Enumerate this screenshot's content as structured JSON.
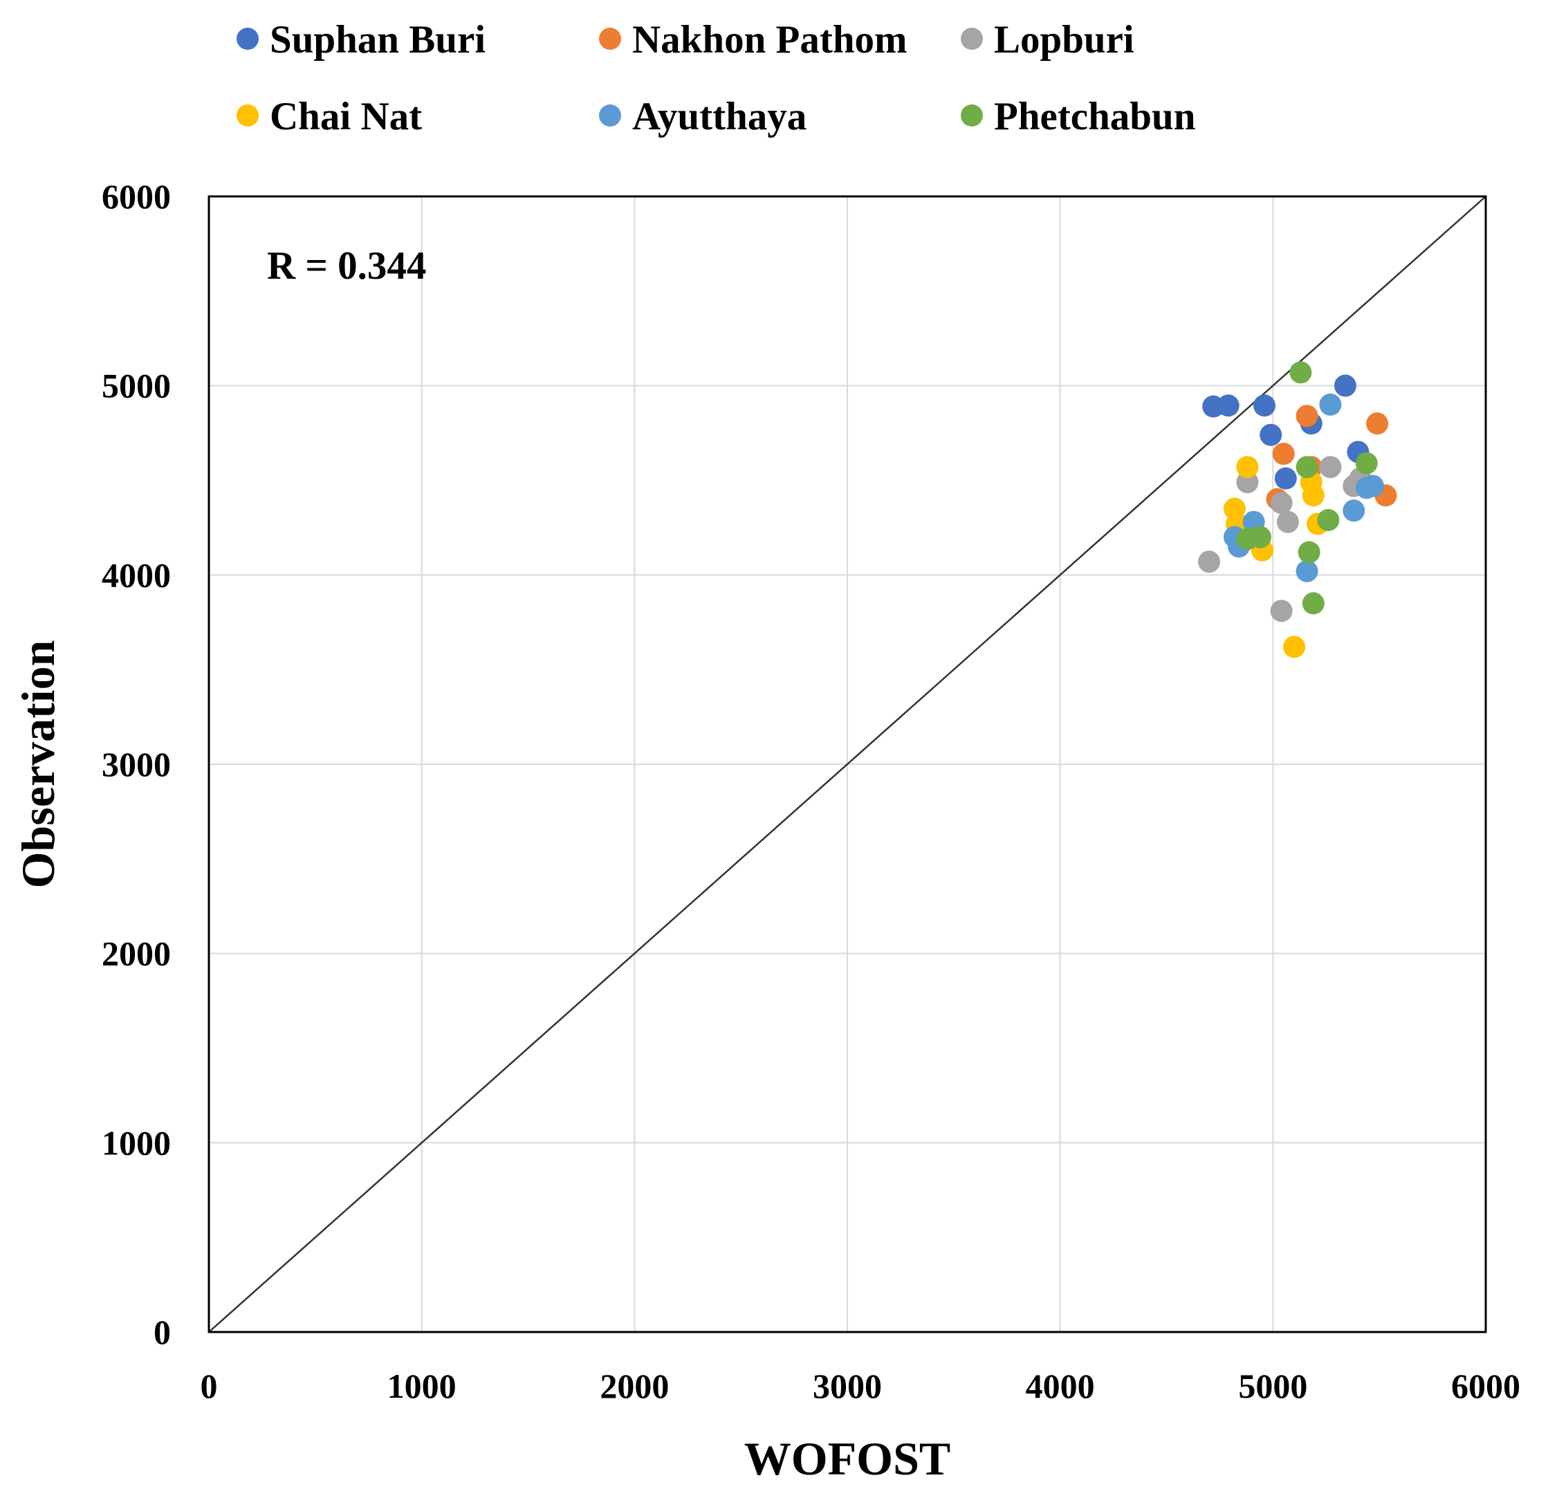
{
  "chart_data": {
    "type": "scatter",
    "xlabel": "WOFOST",
    "ylabel": "Observation",
    "xlim": [
      0,
      6000
    ],
    "ylim": [
      0,
      6000
    ],
    "xticks": [
      "0",
      "1000",
      "2000",
      "3000",
      "4000",
      "5000",
      "6000"
    ],
    "yticks": [
      "0",
      "1000",
      "2000",
      "3000",
      "4000",
      "5000",
      "6000"
    ],
    "grid": true,
    "legend_position": "top",
    "annotation": "R = 0.344",
    "reference_line": "1:1",
    "series": [
      {
        "name": "Suphan Buri",
        "color": "#4472C4",
        "points": [
          [
            4720,
            4890
          ],
          [
            4790,
            4895
          ],
          [
            4960,
            4895
          ],
          [
            4990,
            4740
          ],
          [
            5180,
            4800
          ],
          [
            5340,
            5000
          ],
          [
            5400,
            4650
          ],
          [
            5060,
            4510
          ]
        ]
      },
      {
        "name": "Nakhon Pathom",
        "color": "#ED7D31",
        "points": [
          [
            5050,
            4640
          ],
          [
            5160,
            4840
          ],
          [
            5490,
            4800
          ],
          [
            5530,
            4420
          ],
          [
            5020,
            4400
          ],
          [
            5180,
            4570
          ]
        ]
      },
      {
        "name": "Lopburi",
        "color": "#A5A5A5",
        "points": [
          [
            4700,
            4070
          ],
          [
            4880,
            4490
          ],
          [
            5040,
            4380
          ],
          [
            5070,
            4280
          ],
          [
            5040,
            3810
          ],
          [
            5270,
            4570
          ],
          [
            5380,
            4470
          ],
          [
            5410,
            4510
          ]
        ]
      },
      {
        "name": "Chai Nat",
        "color": "#FFC000",
        "points": [
          [
            4880,
            4570
          ],
          [
            4820,
            4350
          ],
          [
            4830,
            4270
          ],
          [
            4950,
            4130
          ],
          [
            5100,
            3620
          ],
          [
            5180,
            4490
          ],
          [
            5190,
            4420
          ],
          [
            5210,
            4270
          ]
        ]
      },
      {
        "name": "Ayutthaya",
        "color": "#5B9BD5",
        "points": [
          [
            4820,
            4200
          ],
          [
            4840,
            4150
          ],
          [
            4910,
            4280
          ],
          [
            5160,
            4020
          ],
          [
            5270,
            4900
          ],
          [
            5380,
            4340
          ],
          [
            5440,
            4460
          ],
          [
            5470,
            4470
          ]
        ]
      },
      {
        "name": "Phetchabun",
        "color": "#70AD47",
        "points": [
          [
            5130,
            5070
          ],
          [
            5160,
            4570
          ],
          [
            5440,
            4590
          ],
          [
            5260,
            4290
          ],
          [
            4880,
            4190
          ],
          [
            4940,
            4200
          ],
          [
            5170,
            4120
          ],
          [
            5190,
            3850
          ]
        ]
      }
    ]
  }
}
